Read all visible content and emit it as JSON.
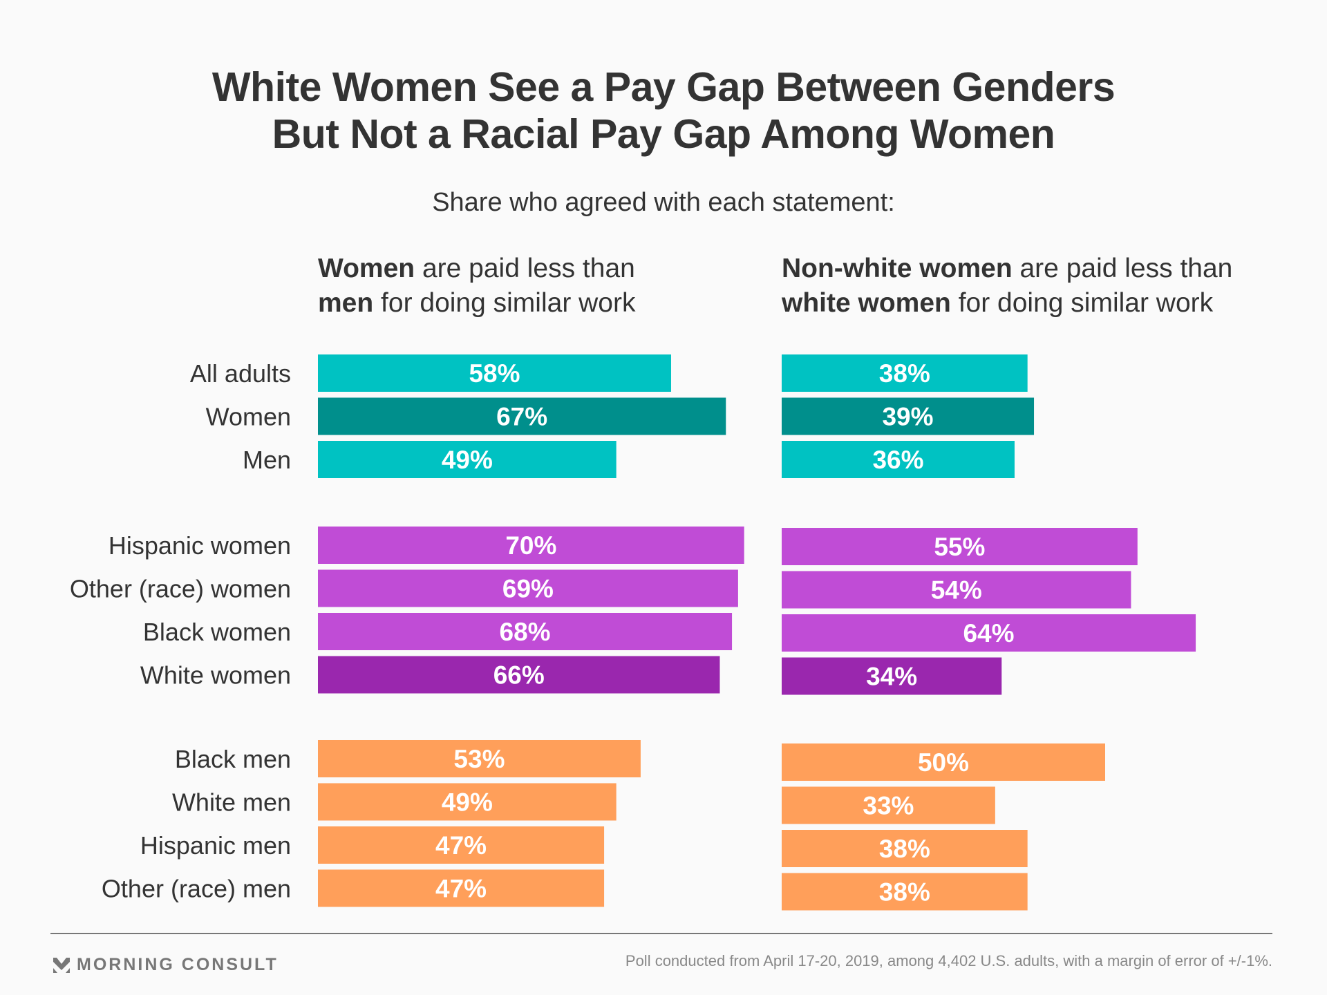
{
  "title_lines": [
    "White Women See a Pay Gap Between Genders",
    "But Not a Racial Pay Gap Among Women"
  ],
  "subtitle": "Share who agreed with each statement:",
  "columns": [
    {
      "line1_bold": "Women",
      "line1_rest": " are paid less than",
      "line2_bold": "men",
      "line2_rest": " for doing similar work"
    },
    {
      "line1_bold": "Non-white women",
      "line1_rest": " are paid less than",
      "line2_bold": "white women",
      "line2_rest": " for doing similar work"
    }
  ],
  "colors": {
    "teal": "#00C2C2",
    "teal_dark": "#008F8C",
    "purple": "#C04CD6",
    "purple_dark": "#9A27AE",
    "orange": "#FF9F5A",
    "text": "#333333",
    "label_text": "#FFFFFF"
  },
  "chart_data": {
    "type": "bar",
    "orientation": "horizontal",
    "title": "White Women See a Pay Gap Between Genders But Not a Racial Pay Gap Among Women",
    "subtitle": "Share who agreed with each statement:",
    "unit": "%",
    "categories": [
      "All adults",
      "Women",
      "Men",
      "Hispanic women",
      "Other (race) women",
      "Black women",
      "White women",
      "Black men",
      "White men",
      "Hispanic men",
      "Other (race) men"
    ],
    "groups": [
      {
        "name": "overall",
        "categories": [
          "All adults",
          "Women",
          "Men"
        ],
        "color": "teal",
        "highlight": "Women"
      },
      {
        "name": "women by race",
        "categories": [
          "Hispanic women",
          "Other (race) women",
          "Black women",
          "White women"
        ],
        "color": "purple",
        "highlight": "White women"
      },
      {
        "name": "men by race",
        "categories": [
          "Black men",
          "White men",
          "Hispanic men",
          "Other (race) men"
        ],
        "color": "orange",
        "highlight": null
      }
    ],
    "series": [
      {
        "name": "Women are paid less than men for doing similar work",
        "values": [
          58,
          67,
          49,
          70,
          69,
          68,
          66,
          53,
          49,
          47,
          47
        ]
      },
      {
        "name": "Non-white women are paid less than white women for doing similar work",
        "values": [
          38,
          39,
          36,
          55,
          54,
          64,
          34,
          50,
          33,
          38,
          38
        ]
      }
    ],
    "data_labels": true,
    "grid": false,
    "xlabel": "",
    "ylabel": ""
  },
  "footer": {
    "brand": "MORNING CONSULT",
    "note": "Poll conducted from April 17-20, 2019, among 4,402 U.S. adults, with a margin of error of +/-1%."
  }
}
